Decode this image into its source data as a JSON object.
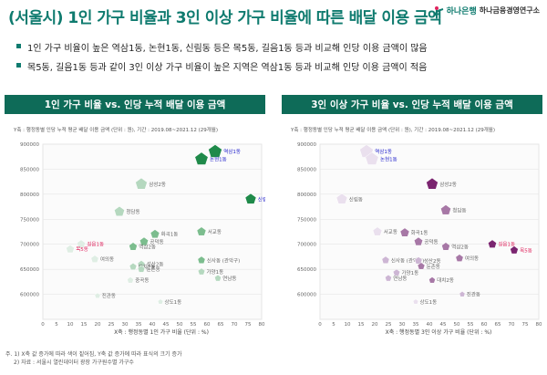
{
  "header": {
    "title": "(서울시) 1인 가구 비율과 3인 이상 가구 비율에 따른 배달 이용 금액",
    "brand_name": "하나은행",
    "brand_institute": "하나금융경영연구소"
  },
  "bullets": [
    "1인 가구 비율이 높은 역삼1동, 논현1동, 신림동 등은 목5동, 길음1동 등과 비교해 인당 이용 금액이 많음",
    "목5동, 길음1동 등과 같이 3인 이상 가구 비율이 높은 지역은 역삼1동 등과 비교해 인당 이용 금액이 적음"
  ],
  "colors": {
    "accent": "#0f7b6f",
    "header_bg": "#0e6b58",
    "green_dark": "#1f8a4a",
    "purple_dark": "#7b2570",
    "highlight_red": "#e0245e",
    "highlight_blue": "#2424cc"
  },
  "icons": {
    "logo": "hana-bank-logo-icon"
  },
  "chart_data": [
    {
      "type": "scatter",
      "title": "1인 가구 비율 vs. 인당 누적 배달 이용 금액",
      "note": "Y축 : 행정동별 인당 누적 평균 배달 이용 금액 (단위 : 원), 기간 : 2019.08~2021.12 (29개월)",
      "xlabel": "X축 : 행정동별 1인 가구 비율 (단위 : %)",
      "ylabel": "",
      "xlim": [
        0,
        80
      ],
      "ylim": [
        550000,
        900000
      ],
      "x_ticks": [
        0,
        5,
        10,
        15,
        20,
        25,
        30,
        35,
        40,
        45,
        50,
        55,
        60,
        65,
        70,
        75,
        80
      ],
      "y_ticks": [
        600000,
        650000,
        700000,
        750000,
        800000,
        850000,
        900000
      ],
      "points": [
        {
          "label": "역삼1동",
          "x": 63,
          "y": 885000,
          "shade": "dark",
          "highlight": "blue"
        },
        {
          "label": "논현1동",
          "x": 58,
          "y": 870000,
          "shade": "dark",
          "highlight": "blue"
        },
        {
          "label": "신림동",
          "x": 76,
          "y": 790000,
          "shade": "dark",
          "highlight": "blue"
        },
        {
          "label": "삼성2동",
          "x": 36,
          "y": 820000,
          "shade": "light",
          "highlight": ""
        },
        {
          "label": "청담동",
          "x": 28,
          "y": 765000,
          "shade": "light",
          "highlight": ""
        },
        {
          "label": "서교동",
          "x": 58,
          "y": 725000,
          "shade": "mid",
          "highlight": ""
        },
        {
          "label": "화곡1동",
          "x": 41,
          "y": 720000,
          "shade": "mid",
          "highlight": ""
        },
        {
          "label": "공덕동",
          "x": 37,
          "y": 705000,
          "shade": "mid",
          "highlight": ""
        },
        {
          "label": "역삼2동",
          "x": 33,
          "y": 695000,
          "shade": "mid",
          "highlight": ""
        },
        {
          "label": "길음1동",
          "x": 14,
          "y": 700000,
          "shade": "faint",
          "highlight": "red"
        },
        {
          "label": "목5동",
          "x": 10,
          "y": 690000,
          "shade": "faint",
          "highlight": "red"
        },
        {
          "label": "여의동",
          "x": 19,
          "y": 670000,
          "shade": "faint",
          "highlight": ""
        },
        {
          "label": "신사동 (관악구)",
          "x": 58,
          "y": 668000,
          "shade": "mid",
          "highlight": ""
        },
        {
          "label": "성산2동",
          "x": 36,
          "y": 660000,
          "shade": "light",
          "highlight": ""
        },
        {
          "label": "대치2동",
          "x": 33,
          "y": 655000,
          "shade": "light",
          "highlight": ""
        },
        {
          "label": "둔촌동",
          "x": 36,
          "y": 650000,
          "shade": "light",
          "highlight": ""
        },
        {
          "label": "가양1동",
          "x": 58,
          "y": 645000,
          "shade": "light",
          "highlight": ""
        },
        {
          "label": "연남동",
          "x": 64,
          "y": 632000,
          "shade": "light",
          "highlight": ""
        },
        {
          "label": "중곡동",
          "x": 32,
          "y": 628000,
          "shade": "faint",
          "highlight": ""
        },
        {
          "label": "진관동",
          "x": 20,
          "y": 597000,
          "shade": "faint",
          "highlight": ""
        },
        {
          "label": "상도1동",
          "x": 43,
          "y": 585000,
          "shade": "faint",
          "highlight": ""
        }
      ]
    },
    {
      "type": "scatter",
      "title": "3인 이상 가구 비율 vs. 인당 누적 배달 이용 금액",
      "note": "Y축 : 행정동별 인당 누적 평균 배달 이용 금액 (단위 : 원), 기간 : 2019.08~2021.12 (29개월)",
      "xlabel": "X축 : 행정동별 3인 이상 가구 비율 (단위 : %)",
      "ylabel": "",
      "xlim": [
        0,
        80
      ],
      "ylim": [
        550000,
        900000
      ],
      "x_ticks": [
        0,
        5,
        10,
        15,
        20,
        25,
        30,
        35,
        40,
        45,
        50,
        55,
        60,
        65,
        70,
        75,
        80
      ],
      "y_ticks": [
        600000,
        650000,
        700000,
        750000,
        800000,
        850000,
        900000
      ],
      "points": [
        {
          "label": "역삼1동",
          "x": 17,
          "y": 885000,
          "shade": "faint",
          "highlight": "blue"
        },
        {
          "label": "논현1동",
          "x": 19,
          "y": 870000,
          "shade": "faint",
          "highlight": "blue"
        },
        {
          "label": "신림동",
          "x": 8,
          "y": 790000,
          "shade": "faint",
          "highlight": ""
        },
        {
          "label": "삼성2동",
          "x": 41,
          "y": 820000,
          "shade": "dark",
          "highlight": ""
        },
        {
          "label": "청담동",
          "x": 46,
          "y": 768000,
          "shade": "mid",
          "highlight": ""
        },
        {
          "label": "화곡1동",
          "x": 31,
          "y": 723000,
          "shade": "mid",
          "highlight": ""
        },
        {
          "label": "서교동",
          "x": 21,
          "y": 725000,
          "shade": "faint",
          "highlight": ""
        },
        {
          "label": "공덕동",
          "x": 36,
          "y": 705000,
          "shade": "mid",
          "highlight": ""
        },
        {
          "label": "역삼2동",
          "x": 46,
          "y": 695000,
          "shade": "mid",
          "highlight": ""
        },
        {
          "label": "길음1동",
          "x": 63,
          "y": 700000,
          "shade": "dark",
          "highlight": "red"
        },
        {
          "label": "목5동",
          "x": 71,
          "y": 688000,
          "shade": "dark",
          "highlight": "red"
        },
        {
          "label": "여의동",
          "x": 51,
          "y": 672000,
          "shade": "mid",
          "highlight": ""
        },
        {
          "label": "신사동 (관악구)",
          "x": 24,
          "y": 668000,
          "shade": "light",
          "highlight": ""
        },
        {
          "label": "성산2동",
          "x": 36,
          "y": 667000,
          "shade": "light",
          "highlight": ""
        },
        {
          "label": "둔촌동",
          "x": 37,
          "y": 656000,
          "shade": "mid",
          "highlight": ""
        },
        {
          "label": "가양1동",
          "x": 28,
          "y": 643000,
          "shade": "light",
          "highlight": ""
        },
        {
          "label": "대치2동",
          "x": 41,
          "y": 628000,
          "shade": "mid",
          "highlight": ""
        },
        {
          "label": "연남동",
          "x": 25,
          "y": 632000,
          "shade": "light",
          "highlight": ""
        },
        {
          "label": "진관동",
          "x": 52,
          "y": 600000,
          "shade": "light",
          "highlight": ""
        },
        {
          "label": "상도1동",
          "x": 35,
          "y": 585000,
          "shade": "faint",
          "highlight": ""
        }
      ]
    }
  ],
  "footnotes": [
    "주. 1) X축 값 증가에 따라 색이 짙어짐, Y축 값 증가에 따라 표식의 크기 증가",
    "2) 자료 : 서울시 열린데이터 광장 가구원수별 가구수"
  ]
}
